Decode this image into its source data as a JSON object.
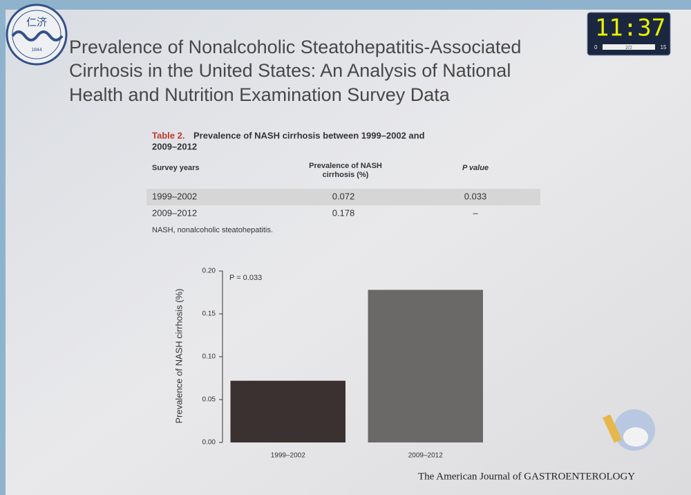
{
  "logo": {
    "name": "仁济",
    "year": "1844"
  },
  "timer": {
    "time": "11:37",
    "start": "0",
    "page": "2/2",
    "end": "15"
  },
  "header": {
    "title_lines": [
      "Prevalence of Nonalcoholic Steatohepatitis-Associated",
      "Cirrhosis in the United States: An Analysis of National",
      "Health and Nutrition Examination Survey Data"
    ]
  },
  "table": {
    "label": "Table 2.",
    "caption_lines": [
      "Prevalence of NASH cirrhosis between 1999–2002 and",
      "2009–2012"
    ],
    "headers": [
      "Survey years",
      "Prevalence of NASH cirrhosis (%)",
      "P value"
    ],
    "rows": [
      [
        "1999–2002",
        "0.072",
        "0.033"
      ],
      [
        "2009–2012",
        "0.178",
        "–"
      ]
    ],
    "footnote": "NASH, nonalcoholic steatohepatitis."
  },
  "chart_data": {
    "type": "bar",
    "y_label": "Prevalence of NASH cirrhosis (%)",
    "annotation": "P = 0.033",
    "categories": [
      "1999–2002",
      "2009–2012"
    ],
    "values": [
      0.072,
      0.178
    ],
    "colors": [
      "#3a3130",
      "#6b6967"
    ],
    "ylim": [
      0,
      0.2
    ],
    "yticks": [
      {
        "value": 0,
        "label": "0.00"
      },
      {
        "value": 0.05,
        "label": "0.05"
      },
      {
        "value": 0.1,
        "label": "0.10"
      },
      {
        "value": 0.15,
        "label": "0.15"
      },
      {
        "value": 0.2,
        "label": "0.20"
      }
    ]
  },
  "footer": {
    "journal": "The American Journal of GASTROENTEROLOGY"
  }
}
